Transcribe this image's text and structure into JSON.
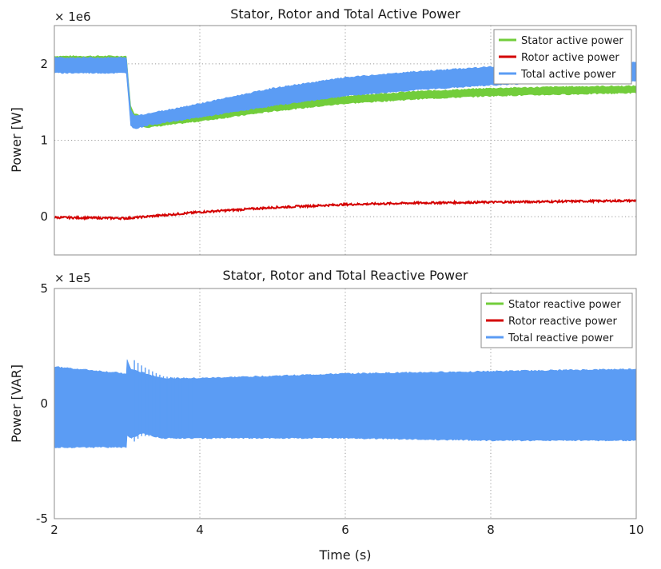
{
  "chart_data": [
    {
      "type": "line",
      "title": "Stator, Rotor and Total Active Power",
      "xlabel": "",
      "ylabel": "Power [W]",
      "exponent_label": "× 1e6",
      "xlim": [
        2,
        10
      ],
      "ylim": [
        -0.5,
        2.5
      ],
      "yticks": [
        0,
        1,
        2
      ],
      "ytick_labels": [
        "0",
        "1",
        "2"
      ],
      "xticks": [
        2,
        4,
        6,
        8,
        10
      ],
      "grid": true,
      "legend_position": "top-right",
      "series": [
        {
          "name": "Stator active power",
          "color": "#72cd3b",
          "x": [
            2.0,
            2.99,
            3.05,
            3.1,
            3.3,
            4.0,
            5.0,
            6.0,
            7.0,
            8.0,
            9.0,
            10.0
          ],
          "low": [
            1.9,
            1.9,
            1.3,
            1.2,
            1.17,
            1.25,
            1.38,
            1.48,
            1.54,
            1.58,
            1.6,
            1.62
          ],
          "high": [
            2.1,
            2.1,
            1.45,
            1.35,
            1.28,
            1.35,
            1.48,
            1.58,
            1.64,
            1.68,
            1.7,
            1.71
          ]
        },
        {
          "name": "Rotor active power",
          "color": "#d40000",
          "x": [
            2.0,
            3.0,
            3.5,
            4.0,
            5.0,
            6.0,
            7.0,
            8.0,
            9.0,
            10.0
          ],
          "values": [
            -0.01,
            -0.02,
            0.02,
            0.06,
            0.12,
            0.16,
            0.18,
            0.19,
            0.2,
            0.21
          ]
        },
        {
          "name": "Total active power",
          "color": "#5b9cf4",
          "x": [
            2.0,
            2.99,
            3.05,
            3.1,
            3.3,
            4.0,
            5.0,
            6.0,
            7.0,
            8.0,
            9.0,
            10.0
          ],
          "low": [
            1.88,
            1.88,
            1.2,
            1.15,
            1.2,
            1.3,
            1.45,
            1.58,
            1.66,
            1.72,
            1.76,
            1.78
          ],
          "high": [
            2.08,
            2.08,
            1.4,
            1.32,
            1.35,
            1.48,
            1.68,
            1.82,
            1.9,
            1.96,
            1.99,
            2.02
          ]
        }
      ]
    },
    {
      "type": "line",
      "title": "Stator, Rotor and Total Reactive Power",
      "xlabel": "Time (s)",
      "ylabel": "Power [VAR]",
      "exponent_label": "× 1e5",
      "xlim": [
        2,
        10
      ],
      "ylim": [
        -5,
        5
      ],
      "yticks": [
        -5,
        0,
        5
      ],
      "ytick_labels": [
        "-5",
        "0",
        "5"
      ],
      "xticks": [
        2,
        4,
        6,
        8,
        10
      ],
      "xtick_labels": [
        "2",
        "4",
        "6",
        "8",
        "10"
      ],
      "grid": true,
      "legend_position": "top-right",
      "series": [
        {
          "name": "Stator reactive power",
          "color": "#72cd3b"
        },
        {
          "name": "Rotor reactive power",
          "color": "#d40000"
        },
        {
          "name": "Total reactive power",
          "color": "#5b9cf4",
          "x": [
            2.0,
            2.99,
            3.0,
            3.05,
            3.2,
            3.5,
            4.0,
            5.0,
            6.0,
            7.0,
            8.0,
            9.0,
            10.0
          ],
          "high": [
            1.6,
            1.3,
            1.9,
            1.5,
            1.35,
            1.1,
            1.1,
            1.2,
            1.3,
            1.35,
            1.4,
            1.45,
            1.5
          ],
          "low": [
            -1.9,
            -1.9,
            -1.4,
            -1.5,
            -1.3,
            -1.5,
            -1.5,
            -1.5,
            -1.5,
            -1.55,
            -1.6,
            -1.6,
            -1.6
          ]
        }
      ]
    }
  ]
}
